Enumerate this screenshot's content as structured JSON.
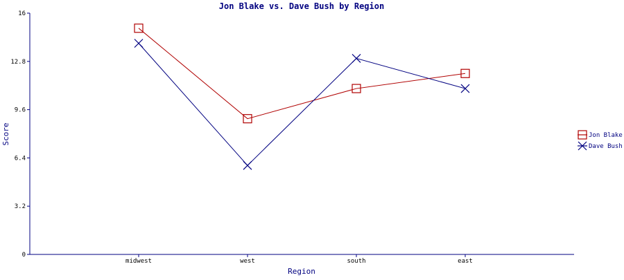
{
  "chart_data": {
    "type": "line",
    "title": "Jon Blake vs. Dave Bush by Region",
    "xlabel": "Region",
    "ylabel": "Score",
    "categories": [
      "midwest",
      "west",
      "south",
      "east"
    ],
    "y_ticks": [
      "0",
      "3.2",
      "6.4",
      "9.6",
      "12.8",
      "16"
    ],
    "ylim": [
      0,
      16
    ],
    "grid": false,
    "legend_position": "right",
    "series": [
      {
        "name": "Jon Blake",
        "color": "#b00000",
        "marker": "square",
        "values": [
          15.0,
          9.0,
          11.0,
          12.0
        ]
      },
      {
        "name": "Dave Bush",
        "color": "#000080",
        "marker": "x",
        "values": [
          14.0,
          5.9,
          13.0,
          11.0
        ]
      }
    ]
  }
}
